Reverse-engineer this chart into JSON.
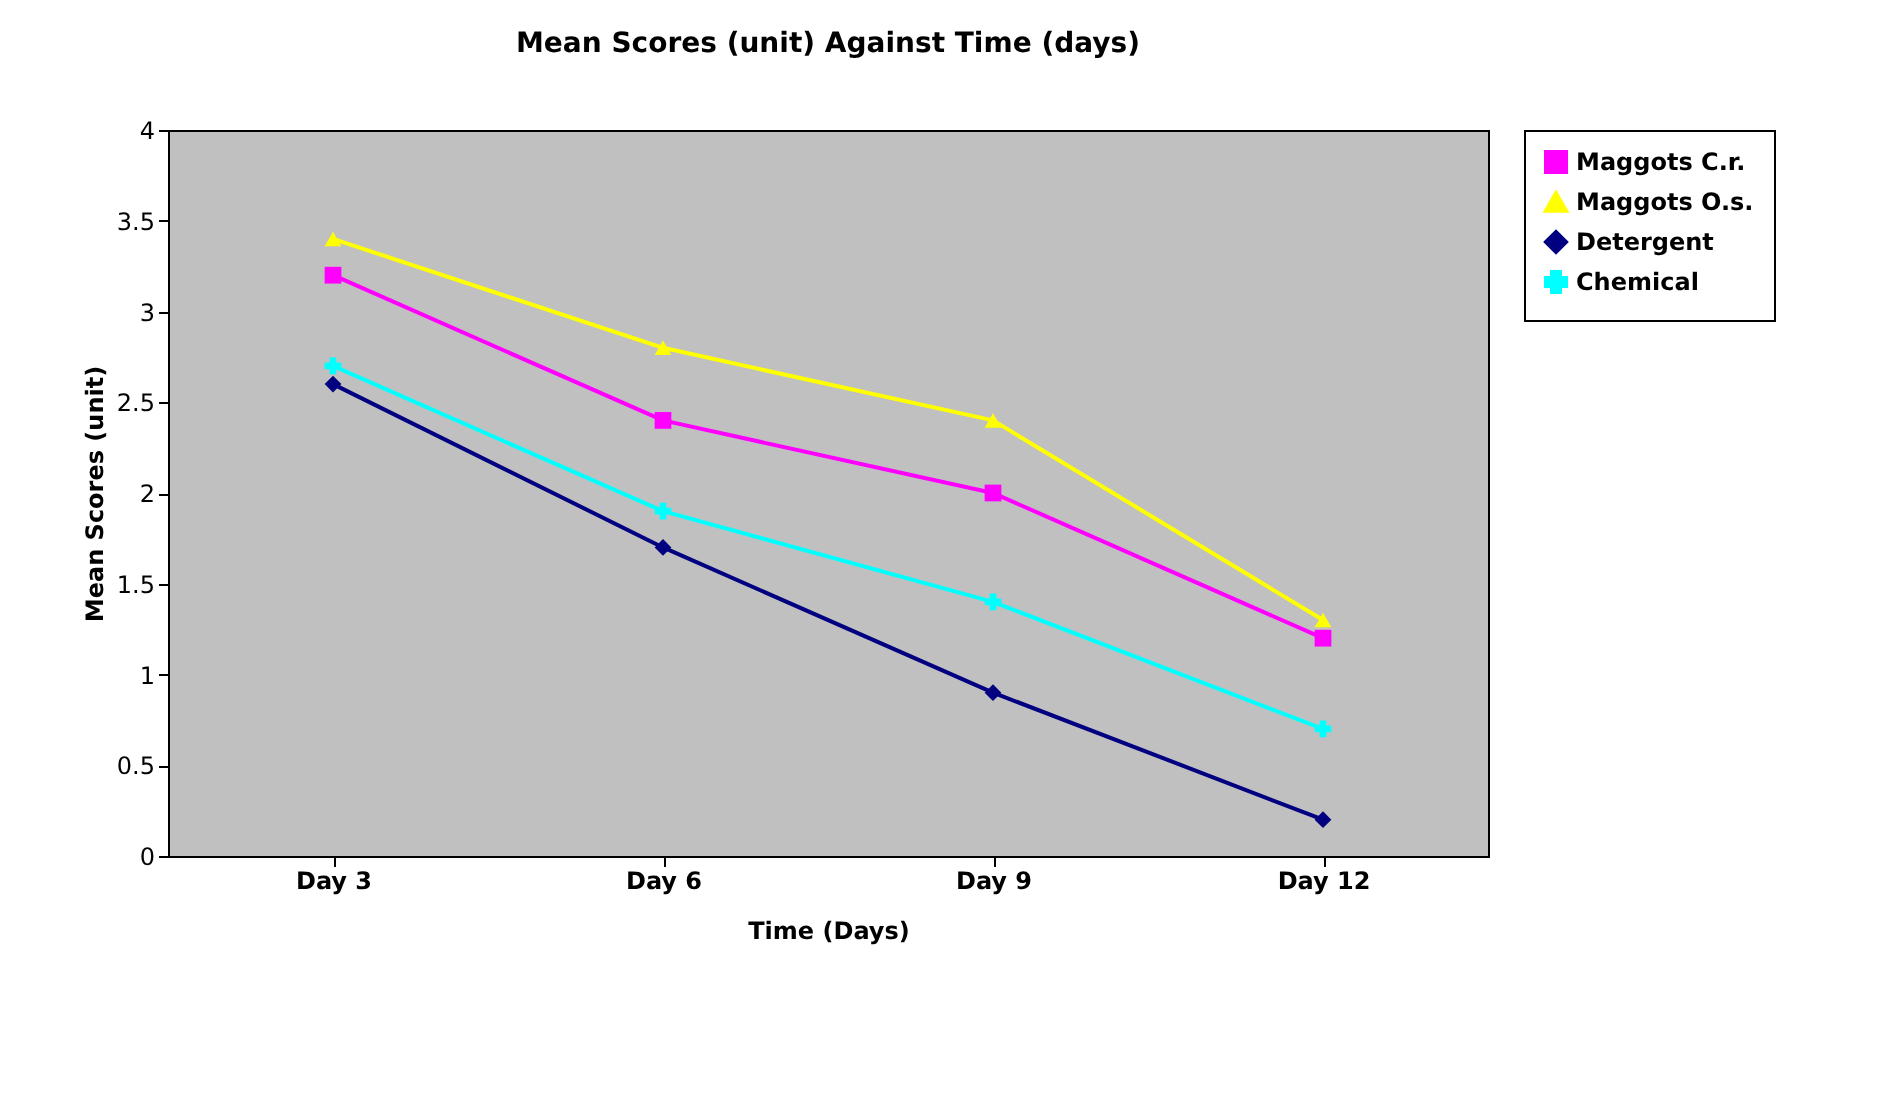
{
  "chart_data": {
    "type": "line",
    "title": "Mean Scores (unit) Against Time (days)",
    "xlabel": "Time (Days)",
    "ylabel": "Mean Scores (unit)",
    "categories": [
      "Day 3",
      "Day 6",
      "Day 9",
      "Day 12"
    ],
    "series": [
      {
        "name": "Maggots C.r.",
        "color": "#ff00ff",
        "marker": "square",
        "values": [
          3.2,
          2.4,
          2.0,
          1.2
        ]
      },
      {
        "name": "Maggots O.s.",
        "color": "#ffff00",
        "marker": "triangle",
        "values": [
          3.4,
          2.8,
          2.4,
          1.3
        ]
      },
      {
        "name": "Detergent",
        "color": "#000080",
        "marker": "diamond",
        "values": [
          2.6,
          1.7,
          0.9,
          0.2
        ]
      },
      {
        "name": "Chemical",
        "color": "#00ffff",
        "marker": "cross",
        "values": [
          2.7,
          1.9,
          1.4,
          0.7
        ]
      }
    ],
    "ylim": [
      0,
      4
    ],
    "yticks": [
      0,
      0.5,
      1,
      1.5,
      2,
      2.5,
      3,
      3.5,
      4
    ],
    "grid": false,
    "legend": "right",
    "line_style": "solid"
  }
}
